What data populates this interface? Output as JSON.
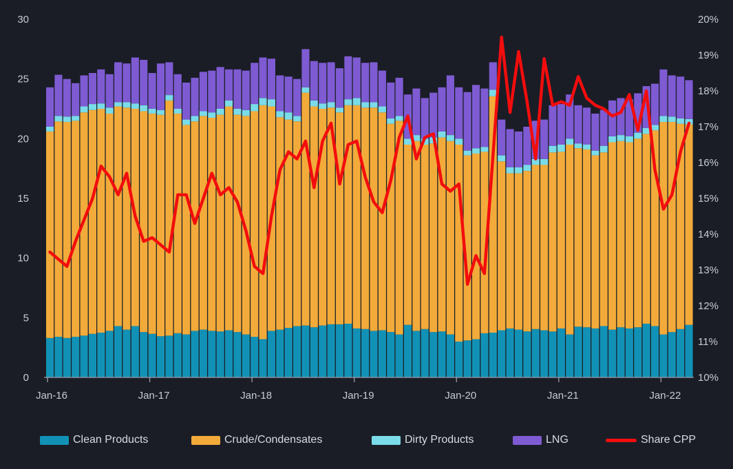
{
  "chart_data": {
    "type": "combo-stacked-bar-line",
    "title": "",
    "x_start": "Jan-16",
    "x_end": "Apr-22",
    "months_count": 76,
    "x_tick_labels": [
      "Jan-16",
      "Jan-17",
      "Jan-18",
      "Jan-19",
      "Jan-20",
      "Jan-21",
      "Jan-22"
    ],
    "x_tick_month_index": [
      0,
      12,
      24,
      36,
      48,
      60,
      72
    ],
    "axes": {
      "left": {
        "min": 0,
        "max": 30,
        "ticks": [
          0,
          5,
          10,
          15,
          20,
          25,
          30
        ]
      },
      "right": {
        "min": 10,
        "max": 20,
        "ticks": [
          "10%",
          "11%",
          "12%",
          "13%",
          "14%",
          "15%",
          "16%",
          "17%",
          "18%",
          "19%",
          "20%"
        ]
      },
      "grid": false
    },
    "legend_position": "bottom",
    "colors": {
      "background": "#1a1d26",
      "axis_text": "#c6cbd3",
      "axis_line": "#9aa0a9",
      "clean": "#1291b6",
      "crude": "#f2ab3a",
      "dirty": "#7adce8",
      "lng": "#7e5bd2",
      "share_cpp": "#f20d0d"
    },
    "series": [
      {
        "name": "Clean Products",
        "kind": "bar",
        "color": "#1291b6",
        "values": [
          3.3,
          3.4,
          3.3,
          3.4,
          3.5,
          3.65,
          3.75,
          3.9,
          4.3,
          4.0,
          4.3,
          3.8,
          3.65,
          3.45,
          3.5,
          3.7,
          3.6,
          3.9,
          4.0,
          3.9,
          3.85,
          3.95,
          3.8,
          3.6,
          3.4,
          3.2,
          3.9,
          4.0,
          4.15,
          4.3,
          4.35,
          4.2,
          4.35,
          4.45,
          4.45,
          4.5,
          4.1,
          4.05,
          3.9,
          3.95,
          3.8,
          3.6,
          4.4,
          3.9,
          4.05,
          3.8,
          3.85,
          3.6,
          3.0,
          3.1,
          3.2,
          3.7,
          3.75,
          3.95,
          4.1,
          4.0,
          3.85,
          4.05,
          3.95,
          3.85,
          4.1,
          3.6,
          4.25,
          4.2,
          4.1,
          4.3,
          4.0,
          4.2,
          4.1,
          4.2,
          4.5,
          4.3,
          3.6,
          3.8,
          4.05,
          4.4
        ]
      },
      {
        "name": "Crude/Condensates",
        "kind": "bar",
        "color": "#f2ab3a",
        "values": [
          17.3,
          18.05,
          18.1,
          18.1,
          18.7,
          18.75,
          18.75,
          18.2,
          18.4,
          18.6,
          18.2,
          18.5,
          18.45,
          18.55,
          19.7,
          18.4,
          17.55,
          17.55,
          17.9,
          17.85,
          18.15,
          18.75,
          18.2,
          18.3,
          18.9,
          19.6,
          18.8,
          17.8,
          17.45,
          17.15,
          19.5,
          18.5,
          18.15,
          18.15,
          17.75,
          18.3,
          18.7,
          18.55,
          18.7,
          18.25,
          17.45,
          17.9,
          15.1,
          15.9,
          15.45,
          15.8,
          16.25,
          16.2,
          16.5,
          15.5,
          15.55,
          15.2,
          19.8,
          14.15,
          13.0,
          13.1,
          13.45,
          13.75,
          13.85,
          15.0,
          14.8,
          15.9,
          14.95,
          14.9,
          14.5,
          14.55,
          15.7,
          15.6,
          15.6,
          15.8,
          15.9,
          16.4,
          17.8,
          17.6,
          17.2,
          16.8
        ]
      },
      {
        "name": "Dirty Products",
        "kind": "bar",
        "color": "#7adce8",
        "values": [
          0.4,
          0.45,
          0.45,
          0.4,
          0.5,
          0.5,
          0.45,
          0.5,
          0.35,
          0.45,
          0.45,
          0.5,
          0.4,
          0.4,
          0.45,
          0.4,
          0.45,
          0.45,
          0.4,
          0.45,
          0.5,
          0.5,
          0.5,
          0.5,
          0.6,
          0.6,
          0.6,
          0.5,
          0.6,
          0.45,
          0.45,
          0.5,
          0.45,
          0.45,
          0.4,
          0.5,
          0.6,
          0.45,
          0.45,
          0.5,
          0.45,
          0.4,
          0.5,
          0.5,
          0.5,
          0.5,
          0.5,
          0.5,
          0.5,
          0.4,
          0.45,
          0.4,
          0.55,
          0.5,
          0.5,
          0.5,
          0.5,
          0.5,
          0.5,
          0.55,
          0.6,
          0.5,
          0.4,
          0.4,
          0.4,
          0.55,
          0.5,
          0.5,
          0.5,
          0.5,
          0.5,
          0.45,
          0.5,
          0.45,
          0.45,
          0.45
        ]
      },
      {
        "name": "LNG",
        "kind": "bar",
        "color": "#7e5bd2",
        "values": [
          3.3,
          3.45,
          3.15,
          2.75,
          2.6,
          2.6,
          2.85,
          2.8,
          3.35,
          3.25,
          3.85,
          3.8,
          3.0,
          3.9,
          2.75,
          2.9,
          3.1,
          3.2,
          3.3,
          3.5,
          3.5,
          2.6,
          3.3,
          3.3,
          3.45,
          3.4,
          3.4,
          3.0,
          3.0,
          3.1,
          3.2,
          3.3,
          3.4,
          3.35,
          3.3,
          3.6,
          3.4,
          3.3,
          3.35,
          3.0,
          3.0,
          3.2,
          3.7,
          3.9,
          3.4,
          3.75,
          3.7,
          5.0,
          4.3,
          4.9,
          5.3,
          4.9,
          2.3,
          3.0,
          3.2,
          3.0,
          3.2,
          3.2,
          3.3,
          3.4,
          3.4,
          3.7,
          3.2,
          3.1,
          3.1,
          3.0,
          3.0,
          3.1,
          3.1,
          3.3,
          3.5,
          3.45,
          3.9,
          3.45,
          3.5,
          3.25
        ]
      },
      {
        "name": "Share CPP",
        "kind": "line",
        "axis": "right",
        "color": "#f20d0d",
        "values": [
          13.5,
          13.3,
          13.1,
          13.8,
          14.4,
          15.0,
          15.9,
          15.6,
          15.1,
          15.7,
          14.5,
          13.8,
          13.9,
          13.7,
          13.5,
          15.1,
          15.1,
          14.3,
          15.0,
          15.7,
          15.1,
          15.3,
          14.9,
          14.1,
          13.1,
          12.9,
          14.5,
          15.8,
          16.3,
          16.1,
          16.6,
          15.3,
          16.6,
          17.1,
          15.4,
          16.5,
          16.6,
          15.6,
          14.9,
          14.6,
          15.5,
          16.7,
          17.3,
          16.1,
          16.7,
          16.8,
          15.4,
          15.2,
          15.4,
          12.6,
          13.4,
          12.9,
          16.2,
          19.5,
          17.4,
          19.1,
          17.7,
          16.1,
          18.9,
          17.6,
          17.7,
          17.6,
          18.4,
          17.8,
          17.6,
          17.5,
          17.3,
          17.4,
          17.9,
          16.9,
          18.0,
          15.8,
          14.7,
          15.1,
          16.3,
          17.1
        ]
      }
    ]
  }
}
